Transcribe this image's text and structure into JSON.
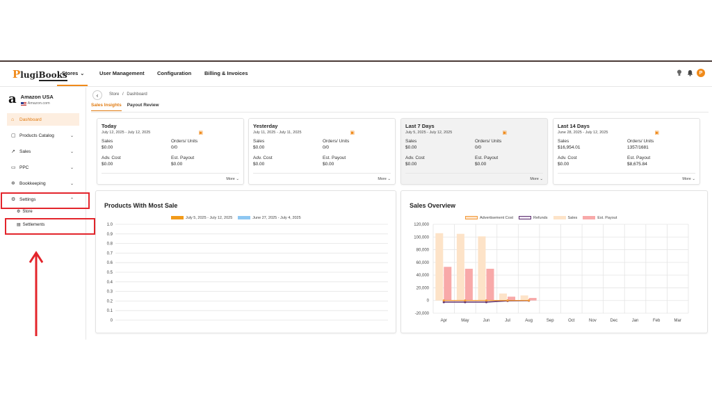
{
  "brand": {
    "logo_prefix": "P",
    "logo_text": "lugi",
    "logo_suffix": "Books"
  },
  "nav": {
    "stores": "Stores",
    "user_management": "User Management",
    "configuration": "Configuration",
    "billing": "Billing & Invoices"
  },
  "user": {
    "avatar_initial": "P"
  },
  "account": {
    "logo": "a",
    "name": "Amazon USA",
    "domain": "Amazon.com"
  },
  "sidebar": {
    "dashboard": "Dashboard",
    "products_catalog": "Products Catalog",
    "sales": "Sales",
    "ppc": "PPC",
    "bookkeeping": "Bookkeeping",
    "settings": "Settings",
    "store": "Store",
    "settlements": "Settlements"
  },
  "breadcrumb": {
    "store": "Store",
    "sep": "/",
    "dashboard": "Dashboard"
  },
  "tabs": {
    "sales_insights": "Sales Insights",
    "payout_review": "Payout Review"
  },
  "cards": [
    {
      "title": "Today",
      "date": "July 12, 2025 - July 12, 2025",
      "sales_label": "Sales",
      "sales": "$0.00",
      "orders_label": "Orders/ Units",
      "orders": "0/0",
      "adv_label": "Adv. Cost",
      "adv": "$0.00",
      "payout_label": "Est. Payout",
      "payout": "$0.00",
      "more": "More"
    },
    {
      "title": "Yesterday",
      "date": "July 11, 2025 - July 11, 2025",
      "sales_label": "Sales",
      "sales": "$0.00",
      "orders_label": "Orders/ Units",
      "orders": "0/0",
      "adv_label": "Adv. Cost",
      "adv": "$0.00",
      "payout_label": "Est. Payout",
      "payout": "$0.00",
      "more": "More"
    },
    {
      "title": "Last 7 Days",
      "date": "July 5, 2025 - July 12, 2025",
      "sales_label": "Sales",
      "sales": "$0.00",
      "orders_label": "Orders/ Units",
      "orders": "0/0",
      "adv_label": "Adv. Cost",
      "adv": "$0.00",
      "payout_label": "Est. Payout",
      "payout": "$0.00",
      "more": "More"
    },
    {
      "title": "Last 14 Days",
      "date": "June 28, 2025 - July 12, 2025",
      "sales_label": "Sales",
      "sales": "$16,954.01",
      "orders_label": "Orders/ Units",
      "orders": "1357/1681",
      "adv_label": "Adv. Cost",
      "adv": "$0.00",
      "payout_label": "Est. Payout",
      "payout": "$8,675.84",
      "more": "More"
    }
  ],
  "panels": {
    "products_title": "Products With Most Sale",
    "sales_title": "Sales Overview"
  },
  "colors": {
    "accent": "#f08a1a",
    "adv": "#f29a3a",
    "refunds": "#5a2d6e",
    "sales": "#fde3c8",
    "payout": "#f8a9a9",
    "series2": "#8ec7f2"
  },
  "chart_data": [
    {
      "type": "bar",
      "title": "Products With Most Sale",
      "series": [
        {
          "name": "July 5, 2025 - July 12, 2025",
          "values": []
        },
        {
          "name": "June 27, 2025 - July 4, 2025",
          "values": []
        }
      ],
      "yticks": [
        "1.0",
        "0.9",
        "0.8",
        "0.7",
        "0.6",
        "0.5",
        "0.4",
        "0.3",
        "0.2",
        "0.1",
        "0"
      ],
      "ylim": [
        0,
        1.0
      ],
      "grid": true,
      "legend": "top"
    },
    {
      "type": "bar",
      "title": "Sales Overview",
      "categories": [
        "Apr",
        "May",
        "Jun",
        "Jul",
        "Aug",
        "Sep",
        "Oct",
        "Nov",
        "Dec",
        "Jan",
        "Feb",
        "Mar"
      ],
      "series": [
        {
          "name": "Advertisement Cost",
          "kind": "line",
          "values": [
            0,
            0,
            0,
            0,
            0,
            null,
            null,
            null,
            null,
            null,
            null,
            null
          ]
        },
        {
          "name": "Refunds",
          "kind": "line",
          "values": [
            -2500,
            -2500,
            -2500,
            -700,
            -300,
            null,
            null,
            null,
            null,
            null,
            null,
            null
          ]
        },
        {
          "name": "Sales",
          "kind": "bar",
          "values": [
            106000,
            105000,
            101000,
            11000,
            8000,
            0,
            0,
            0,
            0,
            0,
            0,
            0
          ]
        },
        {
          "name": "Est. Payout",
          "kind": "bar",
          "values": [
            53000,
            50000,
            50000,
            6000,
            4000,
            0,
            0,
            0,
            0,
            0,
            0,
            0
          ]
        }
      ],
      "yticks": [
        "120,000",
        "100,000",
        "80,000",
        "60,000",
        "40,000",
        "20,000",
        "0",
        "-20,000"
      ],
      "ylim": [
        -20000,
        120000
      ],
      "grid": true,
      "legend": "top"
    }
  ]
}
